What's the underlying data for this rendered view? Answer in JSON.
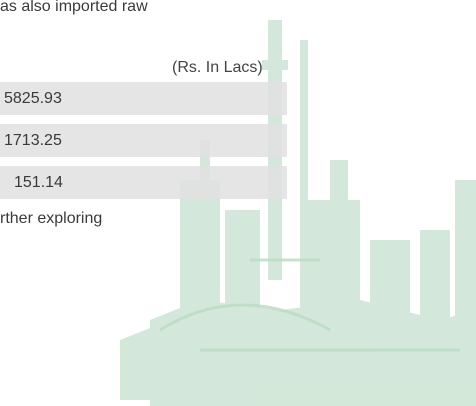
{
  "paragraphs": [
    "as also imported raw",
    "rther exploring"
  ],
  "table": {
    "unit": "(Rs. In Lacs)",
    "rows": [
      [
        "5825.93"
      ],
      [
        "1713.25"
      ],
      [
        "151.14"
      ]
    ]
  }
}
